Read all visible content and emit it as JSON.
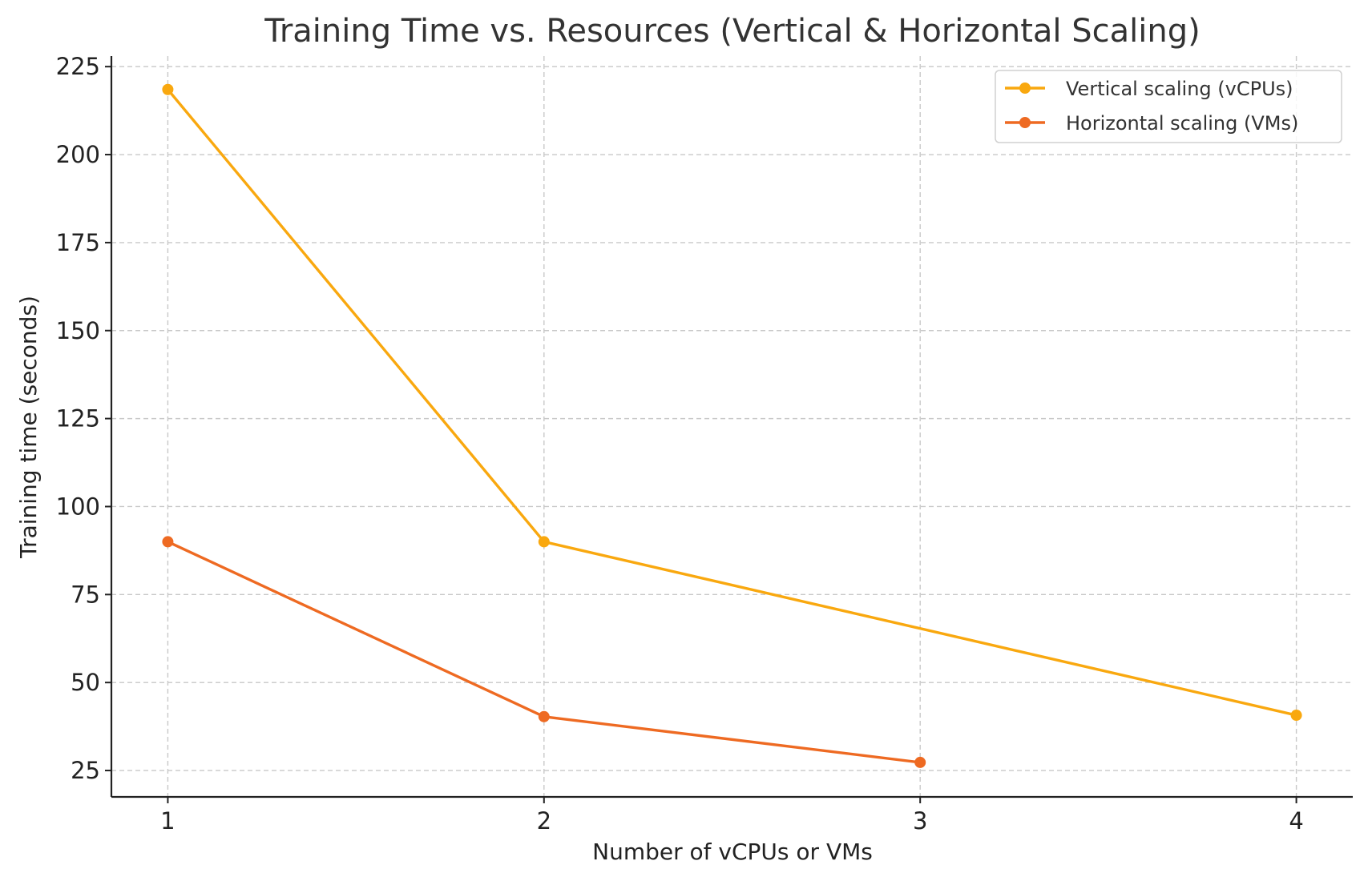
{
  "chart_data": {
    "type": "line",
    "title": "Training Time vs. Resources (Vertical & Horizontal Scaling)",
    "xlabel": "Number of vCPUs or VMs",
    "ylabel": "Training time (seconds)",
    "xlim": [
      0.85,
      4.15
    ],
    "ylim": [
      17.5,
      228
    ],
    "x_ticks": [
      1,
      2,
      3,
      4
    ],
    "y_ticks": [
      25,
      50,
      75,
      100,
      125,
      150,
      175,
      200,
      225
    ],
    "grid": true,
    "legend_position": "top-right",
    "series": [
      {
        "name": "Vertical scaling (vCPUs)",
        "color": "#F9A80F",
        "x": [
          1,
          2,
          4
        ],
        "y": [
          218.5,
          90,
          40.7
        ]
      },
      {
        "name": "Horizontal scaling (VMs)",
        "color": "#EE6A22",
        "x": [
          1,
          2,
          3
        ],
        "y": [
          90,
          40.3,
          27.3
        ]
      }
    ]
  }
}
